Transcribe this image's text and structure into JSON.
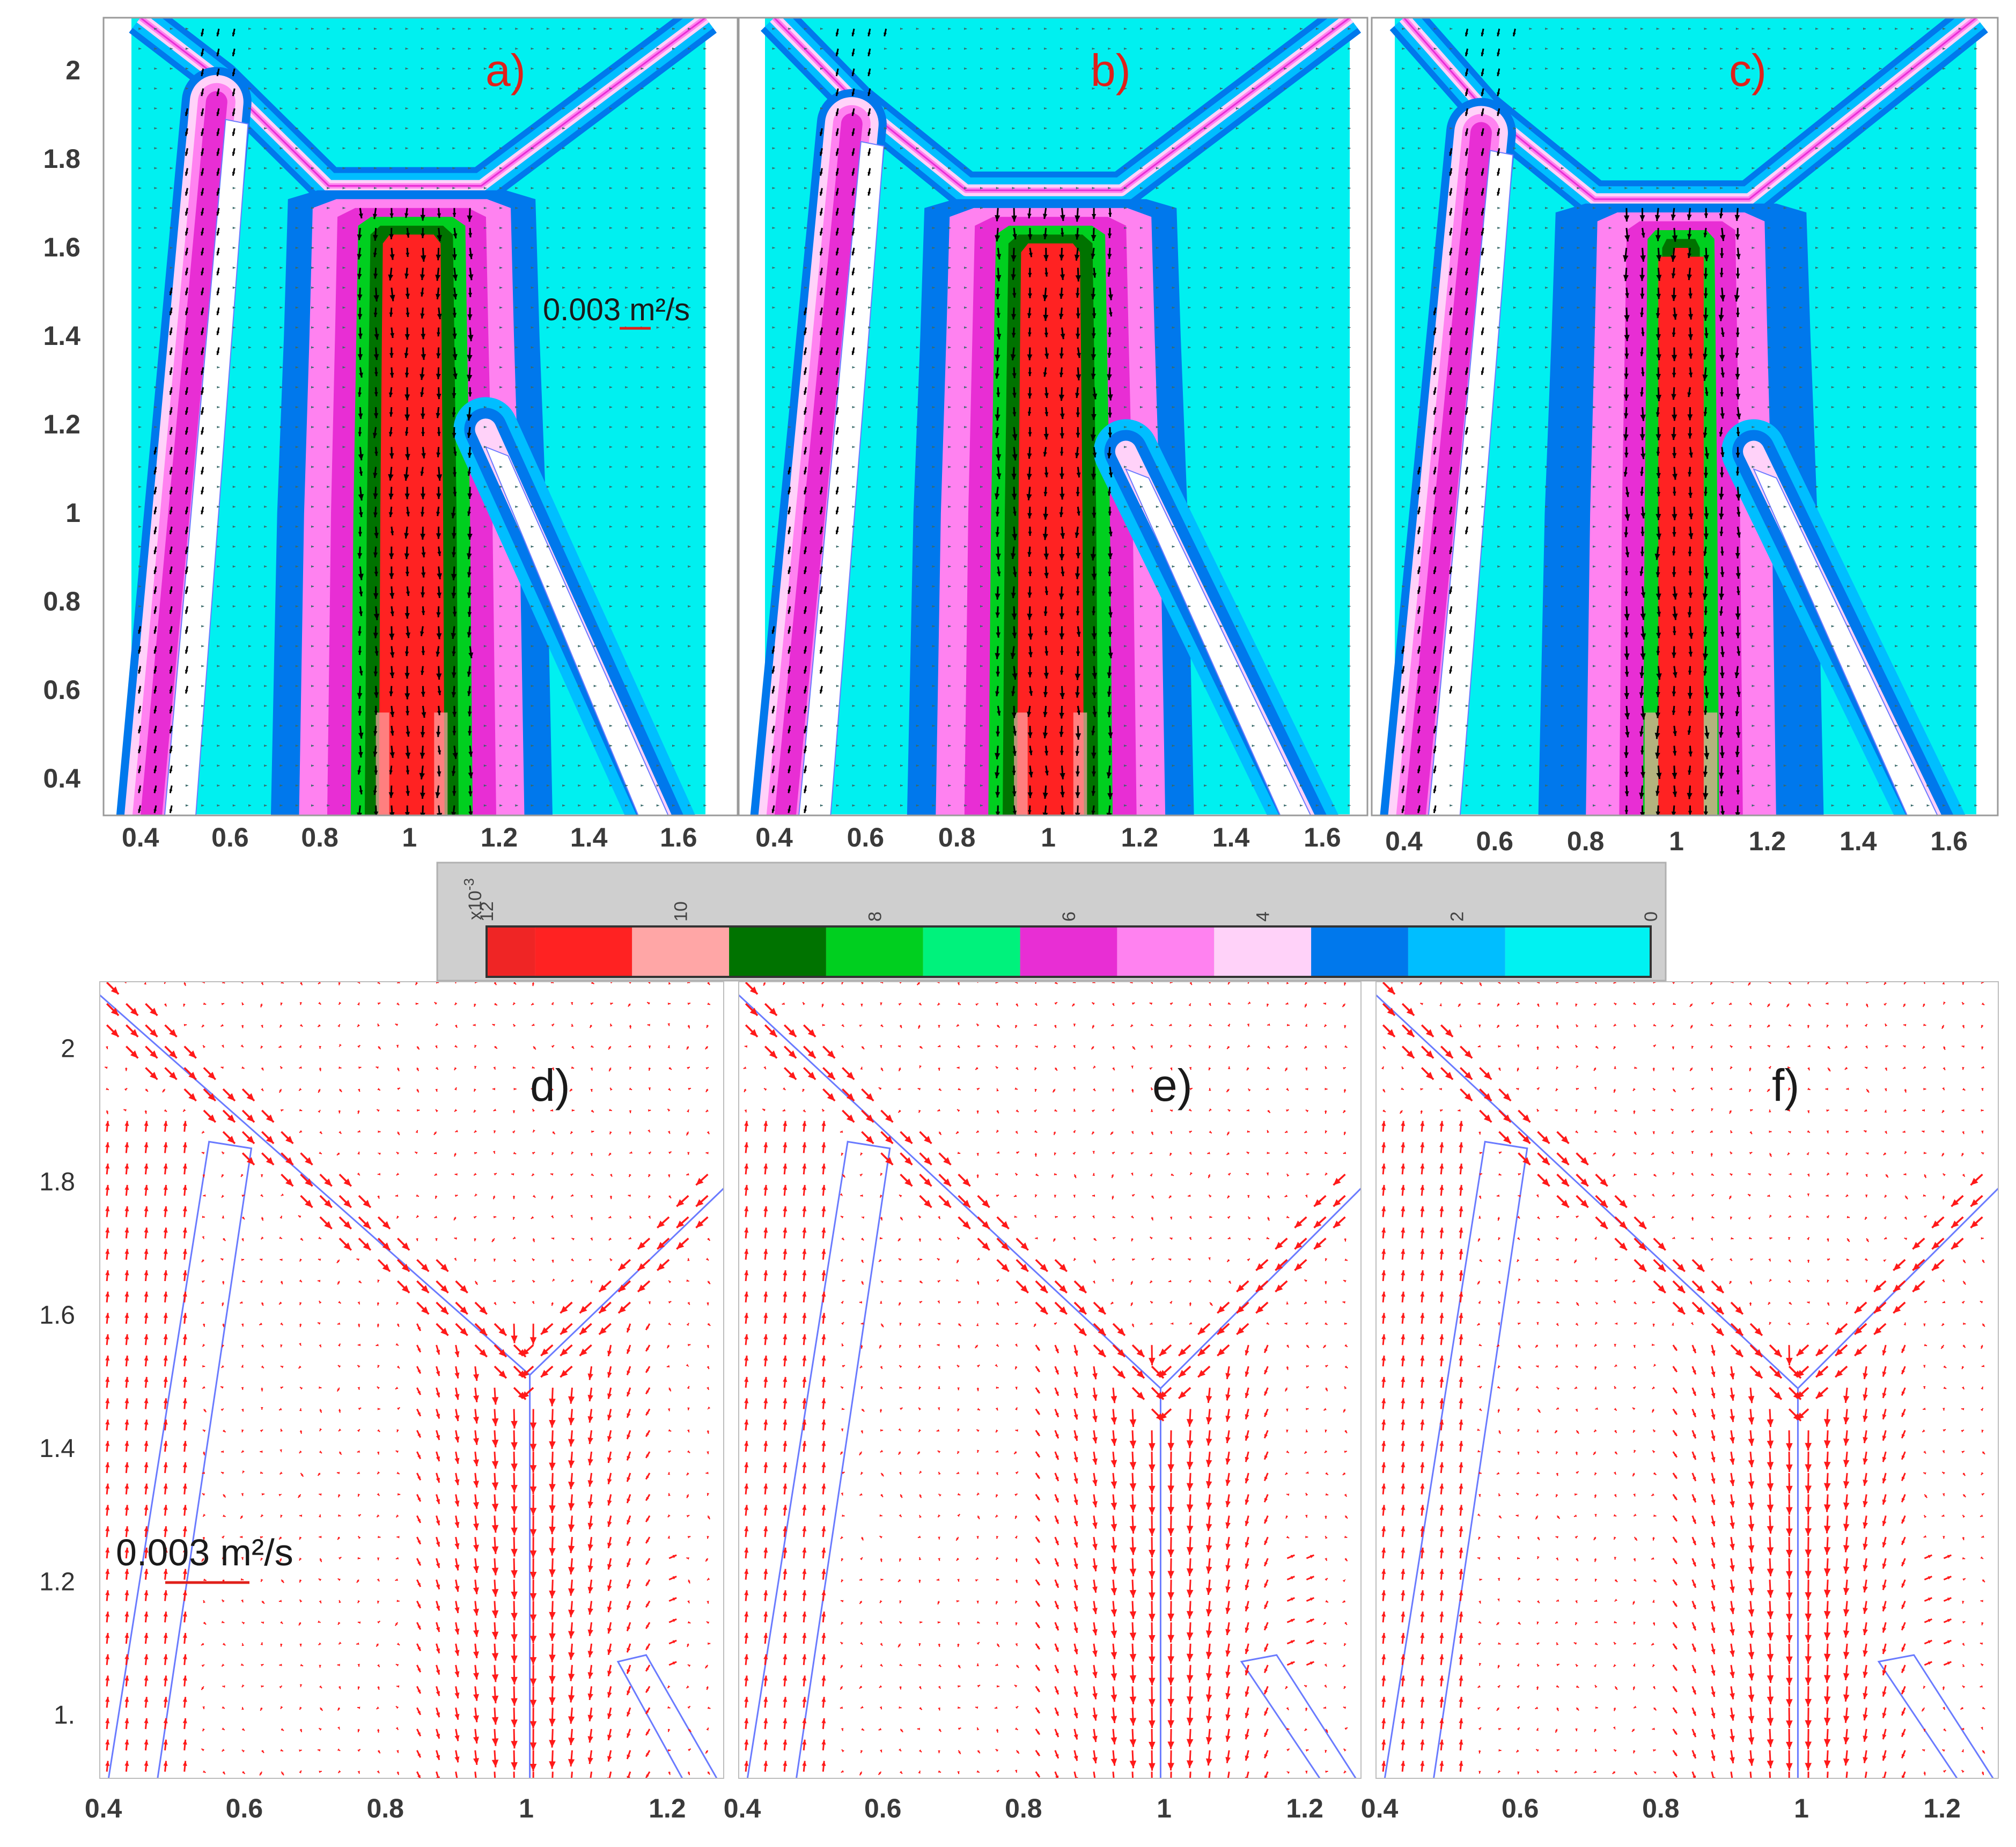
{
  "colors": {
    "panel_label": "#e0201a",
    "background_field": "#00f0f0",
    "arrow_bottom": "#ff1a1a",
    "arrow_top": "#000000",
    "wall_line": "#6a7bff"
  },
  "chart_data": [
    {
      "id": "a",
      "type": "heatmap",
      "panel_label": "a)",
      "x_ticks": [
        "0.4",
        "0.6",
        "0.8",
        "1",
        "1.2",
        "1.4",
        "1.6"
      ],
      "y_ticks": [
        "2",
        "1.8",
        "1.6",
        "1.4",
        "1.2",
        "1",
        "0.8",
        "0.6",
        "0.4"
      ],
      "xlim": [
        0.38,
        1.66
      ],
      "ylim": [
        0.32,
        2.12
      ],
      "scale_arrow_label": "0.003 m²/s",
      "scale_arrow_value": 0.003,
      "overlay": "velocity vectors"
    },
    {
      "id": "b",
      "type": "heatmap",
      "panel_label": "b)",
      "x_ticks": [
        "0.4",
        "0.6",
        "0.8",
        "1",
        "1.2",
        "1.4",
        "1.6"
      ],
      "xlim": [
        0.38,
        1.66
      ],
      "ylim": [
        0.32,
        2.12
      ],
      "overlay": "velocity vectors"
    },
    {
      "id": "c",
      "type": "heatmap",
      "panel_label": "c)",
      "x_ticks": [
        "0.4",
        "0.6",
        "0.8",
        "1",
        "1.2",
        "1.4",
        "1.6"
      ],
      "xlim": [
        0.38,
        1.66
      ],
      "ylim": [
        0.32,
        2.12
      ],
      "overlay": "velocity vectors"
    },
    {
      "id": "colorbar",
      "type": "heatmap",
      "multiplier_label": "x10",
      "multiplier_exponent": "-3",
      "ticks": [
        "12",
        "10",
        "8",
        "6",
        "4",
        "2",
        "0"
      ],
      "range": [
        0,
        12
      ],
      "bins": [
        {
          "from": 11.5,
          "to": 12.0,
          "color": "#ef2525"
        },
        {
          "from": 10.5,
          "to": 11.5,
          "color": "#ff2222"
        },
        {
          "from": 9.5,
          "to": 10.5,
          "color": "#ffa6a6"
        },
        {
          "from": 8.5,
          "to": 9.5,
          "color": "#007300"
        },
        {
          "from": 7.5,
          "to": 8.5,
          "color": "#00cf1f"
        },
        {
          "from": 6.5,
          "to": 7.5,
          "color": "#00f27c"
        },
        {
          "from": 5.5,
          "to": 6.5,
          "color": "#e82ed4"
        },
        {
          "from": 4.5,
          "to": 5.5,
          "color": "#ff82f0"
        },
        {
          "from": 3.5,
          "to": 4.5,
          "color": "#ffd2f9"
        },
        {
          "from": 2.5,
          "to": 3.5,
          "color": "#0078ec"
        },
        {
          "from": 1.5,
          "to": 2.5,
          "color": "#00beff"
        },
        {
          "from": 0.0,
          "to": 1.5,
          "color": "#00f2f2"
        }
      ]
    },
    {
      "id": "d",
      "type": "scatter",
      "panel_label": "d)",
      "x_ticks": [
        "0.4",
        "0.6",
        "0.8",
        "1",
        "1.2"
      ],
      "y_ticks": [
        "2",
        "1.8",
        "1.6",
        "1.4",
        "1.2",
        "1."
      ],
      "xlim": [
        0.395,
        1.28
      ],
      "ylim": [
        0.905,
        2.1
      ],
      "scale_arrow_label": "0.003 m²/s",
      "scale_arrow_value": 0.003,
      "overlay": "velocity vectors"
    },
    {
      "id": "e",
      "type": "scatter",
      "panel_label": "e)",
      "x_ticks": [
        "0.4",
        "0.6",
        "0.8",
        "1",
        "1.2"
      ],
      "xlim": [
        0.395,
        1.28
      ],
      "ylim": [
        0.905,
        2.1
      ],
      "overlay": "velocity vectors"
    },
    {
      "id": "f",
      "type": "scatter",
      "panel_label": "f)",
      "x_ticks": [
        "0.4",
        "0.6",
        "0.8",
        "1",
        "1.2"
      ],
      "xlim": [
        0.395,
        1.28
      ],
      "ylim": [
        0.905,
        2.1
      ],
      "overlay": "velocity vectors"
    }
  ]
}
